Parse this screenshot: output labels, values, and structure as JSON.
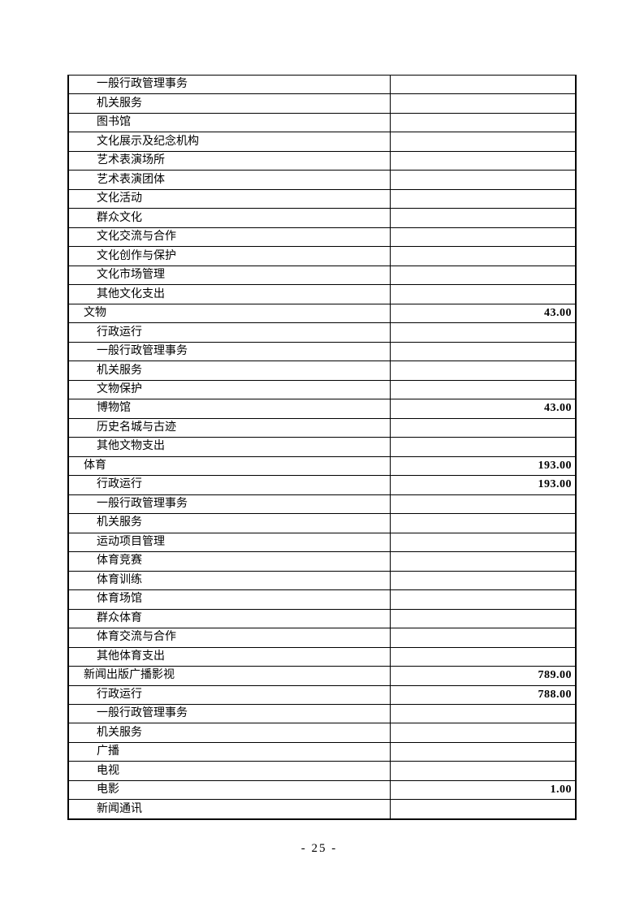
{
  "page": {
    "number_label": "- 25 -"
  },
  "table": {
    "columns": [
      "item",
      "amount"
    ],
    "rows": [
      {
        "label": "一般行政管理事务",
        "value": "",
        "level": 2
      },
      {
        "label": "机关服务",
        "value": "",
        "level": 2
      },
      {
        "label": "图书馆",
        "value": "",
        "level": 2
      },
      {
        "label": "文化展示及纪念机构",
        "value": "",
        "level": 2
      },
      {
        "label": "艺术表演场所",
        "value": "",
        "level": 2
      },
      {
        "label": "艺术表演团体",
        "value": "",
        "level": 2
      },
      {
        "label": "文化活动",
        "value": "",
        "level": 2
      },
      {
        "label": "群众文化",
        "value": "",
        "level": 2
      },
      {
        "label": "文化交流与合作",
        "value": "",
        "level": 2
      },
      {
        "label": "文化创作与保护",
        "value": "",
        "level": 2
      },
      {
        "label": "文化市场管理",
        "value": "",
        "level": 2
      },
      {
        "label": "其他文化支出",
        "value": "",
        "level": 2
      },
      {
        "label": "文物",
        "value": "43.00",
        "level": 1
      },
      {
        "label": "行政运行",
        "value": "",
        "level": 2
      },
      {
        "label": "一般行政管理事务",
        "value": "",
        "level": 2
      },
      {
        "label": "机关服务",
        "value": "",
        "level": 2
      },
      {
        "label": "文物保护",
        "value": "",
        "level": 2
      },
      {
        "label": "博物馆",
        "value": "43.00",
        "level": 2
      },
      {
        "label": "历史名城与古迹",
        "value": "",
        "level": 2
      },
      {
        "label": "其他文物支出",
        "value": "",
        "level": 2
      },
      {
        "label": "体育",
        "value": "193.00",
        "level": 1
      },
      {
        "label": "行政运行",
        "value": "193.00",
        "level": 2
      },
      {
        "label": "一般行政管理事务",
        "value": "",
        "level": 2
      },
      {
        "label": "机关服务",
        "value": "",
        "level": 2
      },
      {
        "label": "运动项目管理",
        "value": "",
        "level": 2
      },
      {
        "label": "体育竞赛",
        "value": "",
        "level": 2
      },
      {
        "label": "体育训练",
        "value": "",
        "level": 2
      },
      {
        "label": "体育场馆",
        "value": "",
        "level": 2
      },
      {
        "label": "群众体育",
        "value": "",
        "level": 2
      },
      {
        "label": "体育交流与合作",
        "value": "",
        "level": 2
      },
      {
        "label": "其他体育支出",
        "value": "",
        "level": 2
      },
      {
        "label": "新闻出版广播影视",
        "value": "789.00",
        "level": 1
      },
      {
        "label": "行政运行",
        "value": "788.00",
        "level": 2
      },
      {
        "label": "一般行政管理事务",
        "value": "",
        "level": 2
      },
      {
        "label": "机关服务",
        "value": "",
        "level": 2
      },
      {
        "label": "广播",
        "value": "",
        "level": 2
      },
      {
        "label": "电视",
        "value": "",
        "level": 2
      },
      {
        "label": "电影",
        "value": "1.00",
        "level": 2
      },
      {
        "label": "新闻通讯",
        "value": "",
        "level": 2
      }
    ]
  },
  "colors": {
    "text": "#000000",
    "border": "#000000",
    "background": "#ffffff"
  }
}
